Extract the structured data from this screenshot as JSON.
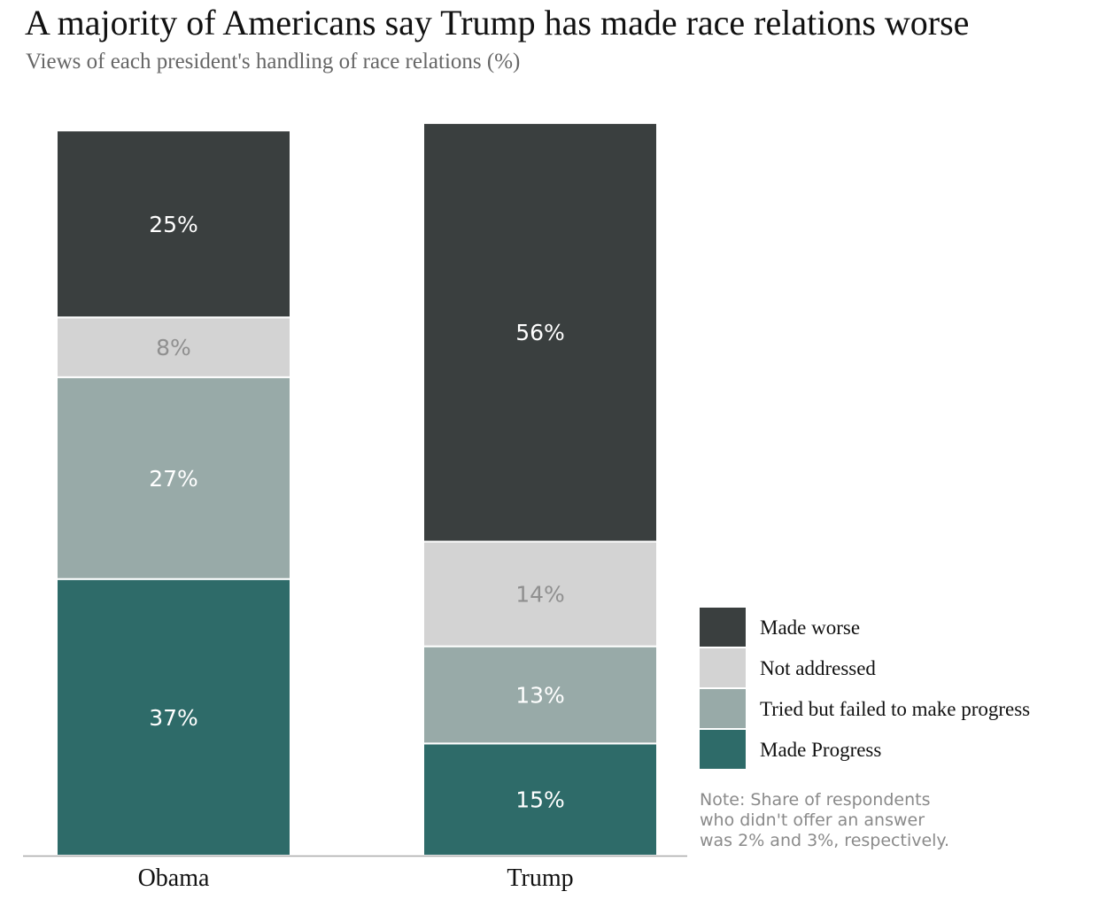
{
  "chart_data": {
    "type": "bar",
    "stacked": true,
    "title": "A majority of Americans say Trump has made race relations worse",
    "subtitle": "Views of each president's handling of race relations (%)",
    "categories": [
      "Obama",
      "Trump"
    ],
    "series": [
      {
        "name": "Made Progress",
        "values": [
          37,
          15
        ],
        "labels": [
          "37%",
          "15%"
        ],
        "color": "#2e6b69",
        "label_color": "#ffffff"
      },
      {
        "name": "Tried but failed to make progress",
        "values": [
          27,
          13
        ],
        "labels": [
          "27%",
          "13%"
        ],
        "color": "#98aaa8",
        "label_color": "#ffffff"
      },
      {
        "name": "Not addressed",
        "values": [
          8,
          14
        ],
        "labels": [
          "8%",
          "14%"
        ],
        "color": "#d3d3d3",
        "label_color": "#8f8f8f"
      },
      {
        "name": "Made worse",
        "values": [
          25,
          56
        ],
        "labels": [
          "25%",
          "56%"
        ],
        "color": "#3a3f3f",
        "label_color": "#ffffff"
      }
    ],
    "legend": {
      "placement": "bottom-right",
      "order": [
        "Made worse",
        "Not addressed",
        "Tried but failed to make progress",
        "Made Progress"
      ]
    },
    "ylim": [
      0,
      100
    ],
    "grid": false,
    "note": [
      "Note: Share of respondents",
      "who didn't offer an answer",
      "was 2% and 3%, respectively."
    ]
  }
}
